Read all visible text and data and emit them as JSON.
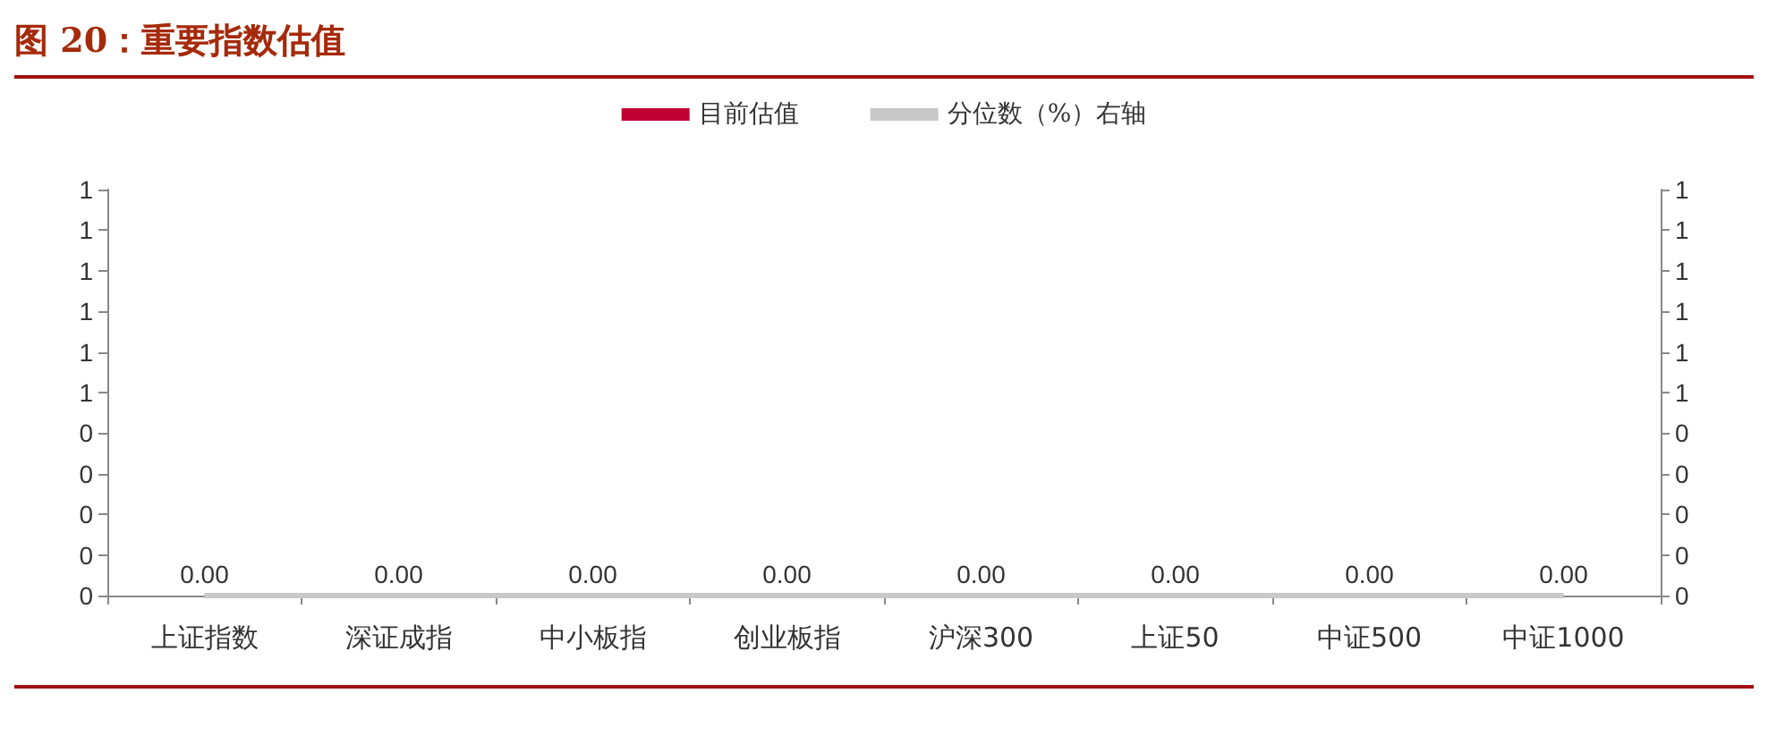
{
  "chart_data": {
    "type": "bar",
    "title": "图 20：重要指数估值",
    "categories": [
      "上证指数",
      "深证成指",
      "中小板指",
      "创业板指",
      "沪深300",
      "上证50",
      "中证500",
      "中证1000"
    ],
    "series": [
      {
        "name": "目前估值",
        "color": "#c00032",
        "values": [
          0,
          0,
          0,
          0,
          0,
          0,
          0,
          0
        ],
        "value_labels": [
          "0.00",
          "0.00",
          "0.00",
          "0.00",
          "0.00",
          "0.00",
          "0.00",
          "0.00"
        ]
      },
      {
        "name": "分位数（%）右轴",
        "type": "line",
        "axis": "y2",
        "color": "#c8c8c8",
        "values": [
          0,
          0,
          0,
          0,
          0,
          0,
          0,
          0
        ]
      }
    ],
    "ylim": [
      0,
      1
    ],
    "yticks": [
      0,
      {
        "value": 0.1,
        "label": "0"
      },
      {
        "value": 0.2,
        "label": "0"
      },
      {
        "value": 0.3,
        "label": "0"
      },
      {
        "value": 0.4,
        "label": "0"
      },
      {
        "value": 0.5,
        "label": "1"
      },
      {
        "value": 0.6,
        "label": "1"
      },
      {
        "value": 0.7,
        "label": "1"
      },
      {
        "value": 0.8,
        "label": "1"
      },
      {
        "value": 0.9,
        "label": "1"
      },
      1
    ],
    "y2lim": [
      0,
      1
    ],
    "y2ticks": [
      0,
      {
        "value": 0.1,
        "label": "0"
      },
      {
        "value": 0.2,
        "label": "0"
      },
      {
        "value": 0.3,
        "label": "0"
      },
      {
        "value": 0.4,
        "label": "0"
      },
      {
        "value": 0.5,
        "label": "1"
      },
      {
        "value": 0.6,
        "label": "1"
      },
      {
        "value": 0.7,
        "label": "1"
      },
      {
        "value": 0.8,
        "label": "1"
      },
      {
        "value": 0.9,
        "label": "1"
      },
      1
    ],
    "legend": "top",
    "grid": false,
    "marker": "none",
    "line_style": "solid"
  }
}
